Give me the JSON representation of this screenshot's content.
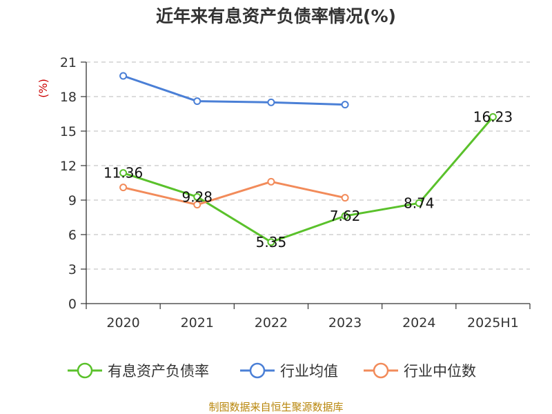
{
  "chart_data": {
    "type": "line",
    "title": "近年来有息资产负债率情况(%)",
    "ylabel": "(%)",
    "xlabel": "",
    "categories": [
      "2020",
      "2021",
      "2022",
      "2023",
      "2024",
      "2025H1"
    ],
    "ylim": [
      0,
      21
    ],
    "yticks": [
      0,
      3,
      6,
      9,
      12,
      15,
      18,
      21
    ],
    "grid": true,
    "legend_position": "bottom",
    "series": [
      {
        "name": "有息资产负债率",
        "color": "#5ac12b",
        "values": [
          11.36,
          9.28,
          5.35,
          7.62,
          8.74,
          16.23
        ],
        "labels": [
          "11.36",
          "9.28",
          "5.35",
          "7.62",
          "8.74",
          "16.23"
        ]
      },
      {
        "name": "行业均值",
        "color": "#4a7fd6",
        "values": [
          19.8,
          17.6,
          17.5,
          17.3,
          null,
          null
        ]
      },
      {
        "name": "行业中位数",
        "color": "#f28b5a",
        "values": [
          10.1,
          8.6,
          10.6,
          9.2,
          null,
          null
        ]
      }
    ]
  },
  "source": "制图数据来自恒生聚源数据库"
}
